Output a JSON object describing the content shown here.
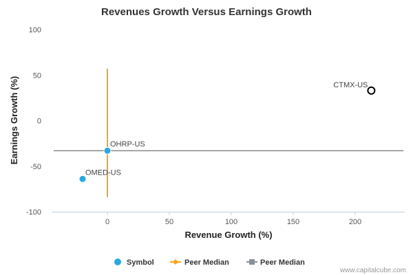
{
  "chart_data": {
    "type": "scatter",
    "title": "Revenues Growth Versus Earnings Growth",
    "xlabel": "Revenue Growth (%)",
    "ylabel": "Earnings Growth (%)",
    "xlim": [
      -45,
      240
    ],
    "ylim": [
      -100,
      100
    ],
    "xticks": [
      0,
      50,
      100,
      150,
      200
    ],
    "yticks": [
      100,
      50,
      0,
      -50,
      -100
    ],
    "grid": false,
    "points": [
      {
        "label": "CTMX-US",
        "x": 213,
        "y": 33,
        "style": "hollow",
        "color": "#000000"
      },
      {
        "label": "OHRP-US",
        "x": 0,
        "y": -33,
        "style": "filled",
        "color": "#29a8e0"
      },
      {
        "label": "OMED-US",
        "x": -20,
        "y": -64,
        "style": "filled",
        "color": "#29a8e0"
      }
    ],
    "peer_median_vertical": {
      "x": 0,
      "y_range": [
        -84,
        57
      ],
      "color": "#f7a21b"
    },
    "peer_median_horizontal": {
      "y": -33,
      "color": "#888888"
    },
    "legend": [
      {
        "label": "Symbol",
        "marker": "circle",
        "color": "#29a8e0"
      },
      {
        "label": "Peer Median",
        "marker": "diamond-line",
        "color": "#f7a21b"
      },
      {
        "label": "Peer Median",
        "marker": "square-line",
        "color": "#8a8f99"
      }
    ],
    "legend_position": "bottom-center"
  },
  "credit": "www.capitalcube.com"
}
